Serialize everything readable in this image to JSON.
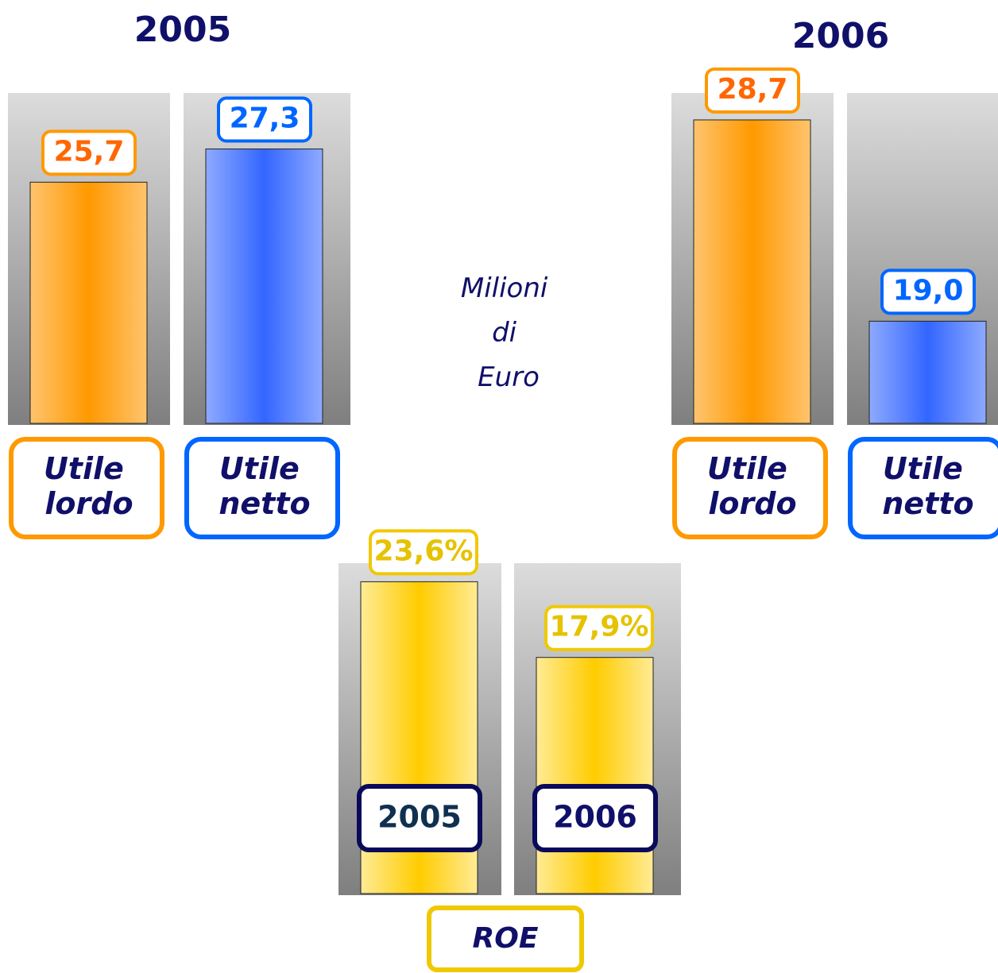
{
  "chart_data": [
    {
      "type": "bar",
      "title": "2005",
      "categories": [
        "Utile lordo",
        "Utile netto"
      ],
      "values": [
        25.7,
        27.3
      ],
      "value_labels": [
        "25,7",
        "27,3"
      ],
      "colors": [
        "#ff9900",
        "#3366ff"
      ],
      "ylim": [
        14,
        30
      ]
    },
    {
      "type": "bar",
      "title": "2006",
      "categories": [
        "Utile lordo",
        "Utile netto"
      ],
      "values": [
        28.7,
        19.0
      ],
      "value_labels": [
        "28,7",
        "19,0"
      ],
      "colors": [
        "#ff9900",
        "#3366ff"
      ],
      "ylim": [
        14,
        30
      ]
    },
    {
      "type": "bar",
      "title": "ROE",
      "categories": [
        "2005",
        "2006"
      ],
      "values": [
        23.6,
        17.9
      ],
      "value_labels": [
        "23,6%",
        "17,9%"
      ],
      "colors": [
        "#ffcc00",
        "#ffcc00"
      ],
      "ylim": [
        0,
        25
      ]
    }
  ],
  "annotation": "Milioni di Euro"
}
